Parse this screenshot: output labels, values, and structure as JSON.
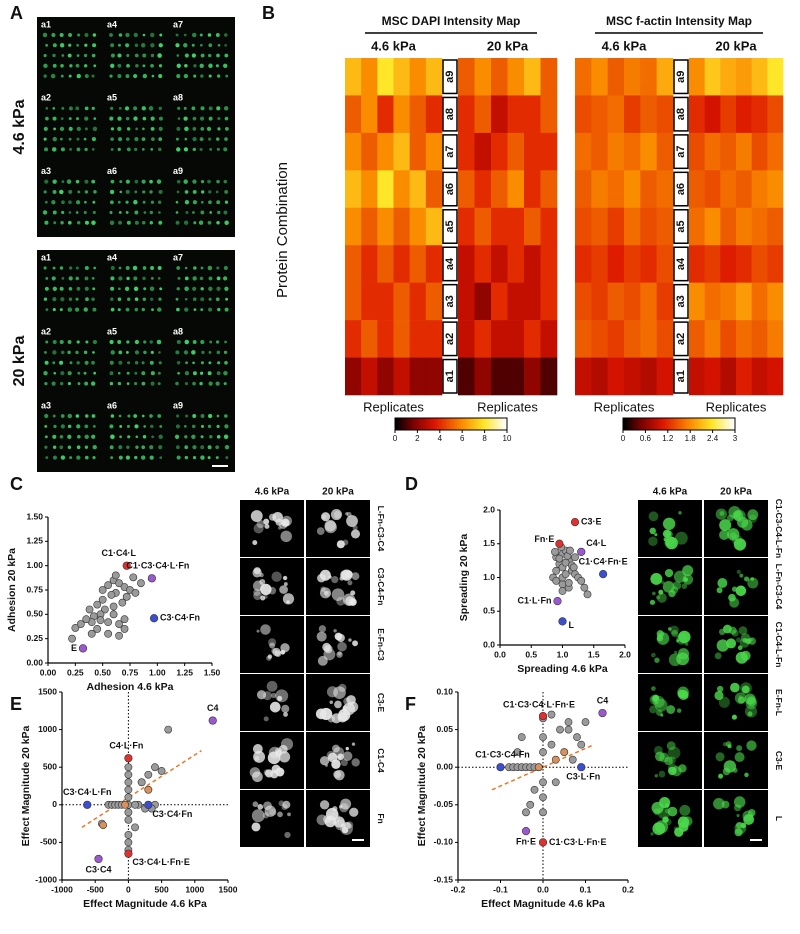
{
  "panel_labels": [
    "A",
    "B",
    "C",
    "D",
    "E",
    "F"
  ],
  "panel_a": {
    "stiffness": [
      "4.6 kPa",
      "20 kPa"
    ],
    "arrays": [
      "a1",
      "a4",
      "a7",
      "a2",
      "a5",
      "a8",
      "a3",
      "a6",
      "a9"
    ]
  },
  "heatmap_ylabel": "Protein Combination",
  "chart_data": [
    {
      "type": "heatmap",
      "title": "MSC DAPI Intensity Map",
      "columns": [
        "4.6 kPa",
        "20 kPa"
      ],
      "xlabel": "Replicates",
      "rows": [
        "a9",
        "a8",
        "a7",
        "a6",
        "a5",
        "a4",
        "a3",
        "a2",
        "a1"
      ],
      "values": [
        [
          7,
          6,
          8,
          7,
          6,
          7,
          5,
          6,
          5,
          6,
          7,
          5
        ],
        [
          5,
          6,
          4,
          6,
          5,
          4,
          4,
          5,
          3,
          4,
          4,
          5
        ],
        [
          6,
          5,
          6,
          7,
          5,
          6,
          4,
          3,
          4,
          5,
          4,
          4
        ],
        [
          7,
          6,
          8,
          6,
          7,
          5,
          5,
          4,
          5,
          6,
          4,
          5
        ],
        [
          6,
          5,
          6,
          5,
          6,
          7,
          4,
          5,
          4,
          4,
          5,
          4
        ],
        [
          5,
          4,
          5,
          4,
          5,
          4,
          3,
          4,
          3,
          4,
          3,
          4
        ],
        [
          5,
          4,
          4,
          5,
          4,
          5,
          3,
          2,
          4,
          3,
          3,
          4
        ],
        [
          4,
          5,
          4,
          5,
          4,
          4,
          3,
          4,
          3,
          3,
          4,
          3
        ],
        [
          2,
          3,
          2,
          3,
          2,
          2,
          1,
          2,
          1,
          1,
          2,
          1
        ]
      ],
      "clim": [
        0,
        10
      ],
      "colorbar_ticks": [
        0,
        2,
        4,
        6,
        8,
        10
      ]
    },
    {
      "type": "heatmap",
      "title": "MSC f-actin Intensity Map",
      "columns": [
        "4.6 kPa",
        "20 kPa"
      ],
      "xlabel": "Replicates",
      "rows": [
        "a9",
        "a8",
        "a7",
        "a6",
        "a5",
        "a4",
        "a3",
        "a2",
        "a1"
      ],
      "values": [
        [
          1.6,
          1.8,
          1.5,
          1.7,
          1.6,
          2.0,
          1.8,
          2.2,
          2.0,
          1.9,
          2.1,
          2.4
        ],
        [
          1.4,
          1.5,
          1.6,
          1.3,
          1.5,
          1.4,
          1.2,
          1.0,
          1.3,
          1.1,
          1.2,
          1.4
        ],
        [
          1.6,
          1.5,
          1.7,
          1.6,
          1.8,
          1.5,
          1.4,
          1.6,
          1.5,
          1.7,
          1.4,
          1.6
        ],
        [
          1.5,
          1.7,
          1.6,
          1.8,
          1.5,
          1.6,
          1.5,
          1.4,
          1.6,
          1.5,
          1.7,
          1.8
        ],
        [
          1.4,
          1.5,
          1.3,
          1.6,
          1.4,
          1.5,
          1.6,
          1.8,
          1.5,
          1.7,
          1.6,
          1.5
        ],
        [
          1.2,
          1.3,
          1.1,
          1.3,
          1.2,
          1.4,
          1.2,
          1.3,
          1.1,
          1.2,
          1.4,
          1.3
        ],
        [
          1.4,
          1.3,
          1.5,
          1.4,
          1.6,
          1.3,
          1.8,
          1.6,
          1.7,
          1.9,
          1.6,
          1.8
        ],
        [
          1.5,
          1.4,
          1.3,
          1.5,
          1.6,
          1.4,
          1.5,
          1.7,
          1.4,
          1.6,
          1.5,
          1.7
        ],
        [
          0.9,
          0.8,
          1.0,
          0.9,
          0.8,
          1.0,
          0.9,
          1.0,
          0.8,
          1.1,
          0.9,
          1.0
        ]
      ],
      "clim": [
        0,
        3
      ],
      "colorbar_ticks": [
        0,
        0.6,
        1.2,
        1.8,
        2.4,
        3
      ]
    },
    {
      "type": "scatter",
      "xlabel": "Adhesion 4.6 kPa",
      "ylabel": "Adhesion 20 kPa",
      "xlim": [
        0,
        1.5
      ],
      "ylim": [
        0,
        1.5
      ],
      "xticks": [
        {
          "value": 0,
          "label": "0.00"
        },
        {
          "value": 0.25,
          "label": "0.25"
        },
        {
          "value": 0.5,
          "label": "0.50"
        },
        {
          "value": 0.75,
          "label": "0.75"
        },
        {
          "value": 1,
          "label": "1.00"
        },
        {
          "value": 1.25,
          "label": "1.25"
        },
        {
          "value": 1.5,
          "label": "1.50"
        }
      ],
      "yticks": [
        {
          "value": 0,
          "label": "0.00"
        },
        {
          "value": 0.25,
          "label": "0.25"
        },
        {
          "value": 0.5,
          "label": "0.50"
        },
        {
          "value": 0.75,
          "label": "0.75"
        },
        {
          "value": 1,
          "label": "1.00"
        },
        {
          "value": 1.25,
          "label": "1.25"
        },
        {
          "value": 1.5,
          "label": "1.50"
        }
      ],
      "series": [
        {
          "color": "#9a9a9a",
          "x": [
            0.55,
            0.6,
            0.65,
            0.7,
            0.62,
            0.58,
            0.5,
            0.45,
            0.72,
            0.75,
            0.8,
            0.68,
            0.52,
            0.48,
            0.42,
            0.4,
            0.35,
            0.3,
            0.38,
            0.45,
            0.55,
            0.6,
            0.65,
            0.7,
            0.85,
            0.78,
            0.62,
            0.5,
            0.55,
            0.4,
            0.25,
            0.22,
            0.65,
            0.7,
            0.6,
            0.48
          ],
          "y": [
            0.8,
            0.85,
            0.82,
            0.78,
            0.72,
            0.7,
            0.65,
            0.6,
            0.68,
            0.75,
            0.72,
            0.62,
            0.55,
            0.5,
            0.48,
            0.42,
            0.45,
            0.4,
            0.55,
            0.35,
            0.42,
            0.5,
            0.4,
            0.35,
            0.82,
            0.88,
            0.9,
            0.75,
            0.3,
            0.3,
            0.36,
            0.25,
            0.28,
            0.45,
            0.58,
            0.44
          ]
        }
      ],
      "highlights": [
        {
          "text": "C1·C4·L",
          "x": 0.72,
          "y": 1.0,
          "color": "#e03030"
        },
        {
          "text": "C1·C3·C4·L·Fn",
          "x": 0.95,
          "y": 0.87,
          "color": "#9b59d0"
        },
        {
          "text": "C3·C4·Fn",
          "x": 0.97,
          "y": 0.46,
          "color": "#3b4fd0"
        },
        {
          "text": "E",
          "x": 0.32,
          "y": 0.15,
          "color": "#9b59d0"
        }
      ]
    },
    {
      "type": "scatter",
      "xlabel": "Spreading 4.6 kPa",
      "ylabel": "Spreading 20 kPa",
      "xlim": [
        0,
        2
      ],
      "ylim": [
        0,
        2
      ],
      "xticks": [
        {
          "value": 0,
          "label": "0.0"
        },
        0.5,
        {
          "value": 1,
          "label": "1.0"
        },
        1.5,
        {
          "value": 2,
          "label": "2.0"
        }
      ],
      "yticks": [
        {
          "value": 0,
          "label": "0.0"
        },
        0.5,
        {
          "value": 1,
          "label": "1.0"
        },
        1.5,
        {
          "value": 2,
          "label": "2.0"
        }
      ],
      "series": [
        {
          "color": "#9a9a9a",
          "x": [
            0.9,
            1.0,
            1.05,
            1.1,
            0.95,
            1.0,
            1.15,
            1.2,
            0.85,
            0.9,
            1.0,
            1.1,
            1.25,
            1.3,
            0.95,
            1.05,
            1.15,
            0.9,
            1.0,
            1.1,
            1.2,
            1.35,
            1.4,
            0.88,
            0.98,
            1.08,
            1.18,
            1.0,
            1.05,
            1.12
          ],
          "y": [
            1.3,
            1.35,
            1.4,
            1.25,
            1.2,
            1.15,
            1.1,
            1.05,
            1.0,
            0.95,
            0.9,
            0.85,
            1.0,
            0.95,
            1.28,
            1.22,
            1.18,
            1.1,
            1.0,
            0.92,
            1.3,
            0.85,
            0.75,
            1.38,
            1.45,
            1.32,
            1.15,
            0.8,
            1.05,
            1.4
          ]
        }
      ],
      "highlights": [
        {
          "text": "C3·E",
          "x": 1.2,
          "y": 1.82,
          "color": "#e03030"
        },
        {
          "text": "Fn·E",
          "x": 0.95,
          "y": 1.5,
          "color": "#e03030"
        },
        {
          "text": "C4·L",
          "x": 1.3,
          "y": 1.38,
          "color": "#9b59d0"
        },
        {
          "text": "C1·C4·Fn·E",
          "x": 1.65,
          "y": 1.05,
          "color": "#3b4fd0"
        },
        {
          "text": "C1·L·Fn",
          "x": 0.92,
          "y": 0.65,
          "color": "#9b59d0"
        },
        {
          "text": "L",
          "x": 1.0,
          "y": 0.35,
          "color": "#3b4fd0"
        }
      ]
    },
    {
      "type": "scatter",
      "xlabel": "Effect Magnitude 4.6 kPa",
      "ylabel": "Effect Magnitude 20 kPa",
      "xlim": [
        -1000,
        1500
      ],
      "ylim": [
        -1000,
        1500
      ],
      "xticks": [
        -1000,
        -500,
        0,
        500,
        1000,
        1500
      ],
      "yticks": [
        -1000,
        -500,
        0,
        500,
        1000,
        1500
      ],
      "zero_lines": true,
      "series": [
        {
          "color": "#9a9a9a",
          "x": [
            -300,
            -250,
            -200,
            -150,
            -100,
            0,
            0,
            0,
            0,
            0,
            0,
            0,
            100,
            200,
            300,
            400,
            500,
            0,
            0,
            300,
            200,
            400,
            150,
            600,
            100,
            -400,
            350,
            250,
            0,
            0
          ],
          "y": [
            0,
            0,
            0,
            0,
            0,
            0,
            100,
            200,
            300,
            400,
            -100,
            -200,
            -300,
            300,
            400,
            500,
            450,
            -500,
            -600,
            200,
            300,
            0,
            0,
            1000,
            0,
            -250,
            -50,
            -50,
            500,
            -400
          ]
        },
        {
          "color": "#d9905a",
          "x": [
            -380,
            300,
            -50
          ],
          "y": [
            -270,
            200,
            0
          ]
        }
      ],
      "trendline": {
        "color": "#e8782a",
        "x": [
          -700,
          1100
        ],
        "y": [
          -300,
          720
        ]
      },
      "highlights": [
        {
          "text": "C4",
          "x": 1270,
          "y": 1120,
          "color": "#9b59d0"
        },
        {
          "text": "C4·L·Fn",
          "x": 0,
          "y": 620,
          "color": "#e03030"
        },
        {
          "text": "C3·C4·L·Fn",
          "x": -620,
          "y": 0,
          "color": "#3b4fd0"
        },
        {
          "text": "C3·C4·Fn",
          "x": 300,
          "y": 0,
          "color": "#3b4fd0"
        },
        {
          "text": "C3·C4",
          "x": -450,
          "y": -720,
          "color": "#9b59d0"
        },
        {
          "text": "C3·C4·L·Fn·E",
          "x": 0,
          "y": -650,
          "color": "#e03030"
        }
      ]
    },
    {
      "type": "scatter",
      "xlabel": "Effect Magnitude 4.6 kPa",
      "ylabel": "Effect Magnitude 20 kPa",
      "xlim": [
        -0.2,
        0.2
      ],
      "ylim": [
        -0.15,
        0.1
      ],
      "xticks": [
        -0.2,
        -0.1,
        {
          "value": 0,
          "label": "0.0"
        },
        0.1,
        0.2
      ],
      "yticks": [
        -0.15,
        {
          "value": -0.1,
          "label": "-0.10"
        },
        -0.05,
        {
          "value": 0,
          "label": "0.00"
        },
        0.05,
        {
          "value": 0.1,
          "label": "0.10"
        }
      ],
      "zero_lines": true,
      "series": [
        {
          "color": "#9a9a9a",
          "x": [
            -0.08,
            -0.07,
            -0.06,
            -0.05,
            -0.04,
            -0.03,
            -0.02,
            -0.01,
            0,
            0,
            0,
            0,
            0,
            0.02,
            0.04,
            0.06,
            0.08,
            0.1,
            -0.02,
            -0.03,
            -0.04,
            0.02,
            0.05,
            0.07,
            0.09,
            -0.05,
            0,
            0.03,
            0.06,
            -0.06
          ],
          "y": [
            0,
            0,
            0,
            0,
            0,
            0,
            0,
            0,
            0.02,
            0.04,
            -0.02,
            -0.04,
            -0.06,
            0.03,
            0.05,
            0.06,
            0.04,
            0.06,
            -0.03,
            -0.05,
            -0.06,
            0.07,
            0.02,
            0.01,
            0.03,
            0.04,
            0.065,
            -0.02,
            0.05,
            0.02
          ]
        },
        {
          "color": "#d9905a",
          "x": [
            0.03,
            0.05,
            -0.01
          ],
          "y": [
            0.01,
            0.02,
            0
          ]
        }
      ],
      "trendline": {
        "color": "#e8782a",
        "x": [
          -0.12,
          0.12
        ],
        "y": [
          -0.03,
          0.03
        ]
      },
      "highlights": [
        {
          "text": "C4",
          "x": 0.14,
          "y": 0.072,
          "color": "#9b59d0"
        },
        {
          "text": "C1·C3·C4·L·Fn·E",
          "x": 0,
          "y": 0.068,
          "color": "#e03030"
        },
        {
          "text": "C1·C3·C4·Fn",
          "x": -0.1,
          "y": 0,
          "color": "#3b4fd0"
        },
        {
          "text": "C3·L·Fn",
          "x": 0.09,
          "y": 0,
          "color": "#3b4fd0"
        },
        {
          "text": "Fn·E",
          "x": -0.04,
          "y": -0.085,
          "color": "#9b59d0"
        },
        {
          "text": "C1·C3·L·Fn·E",
          "x": 0,
          "y": -0.1,
          "color": "#e03030"
        }
      ]
    }
  ],
  "micrographs": [
    {
      "columns": [
        "4.6 kPa",
        "20 kPa"
      ],
      "rows": [
        "L-Fn-C3-C4",
        "C3-C4-Fn",
        "E-Fn-C3",
        "C3-E",
        "C1-C4",
        "Fn"
      ],
      "tint": "#e8e8e8"
    },
    {
      "columns": [
        "4.6 kPa",
        "20 kPa"
      ],
      "rows": [
        "C1-C3-C4-L-Fn",
        "L-Fn-C3-C4",
        "C1-C4-L-Fn",
        "E-Fn-L",
        "C3-E",
        "L"
      ],
      "tint": "#4cd94c"
    }
  ]
}
